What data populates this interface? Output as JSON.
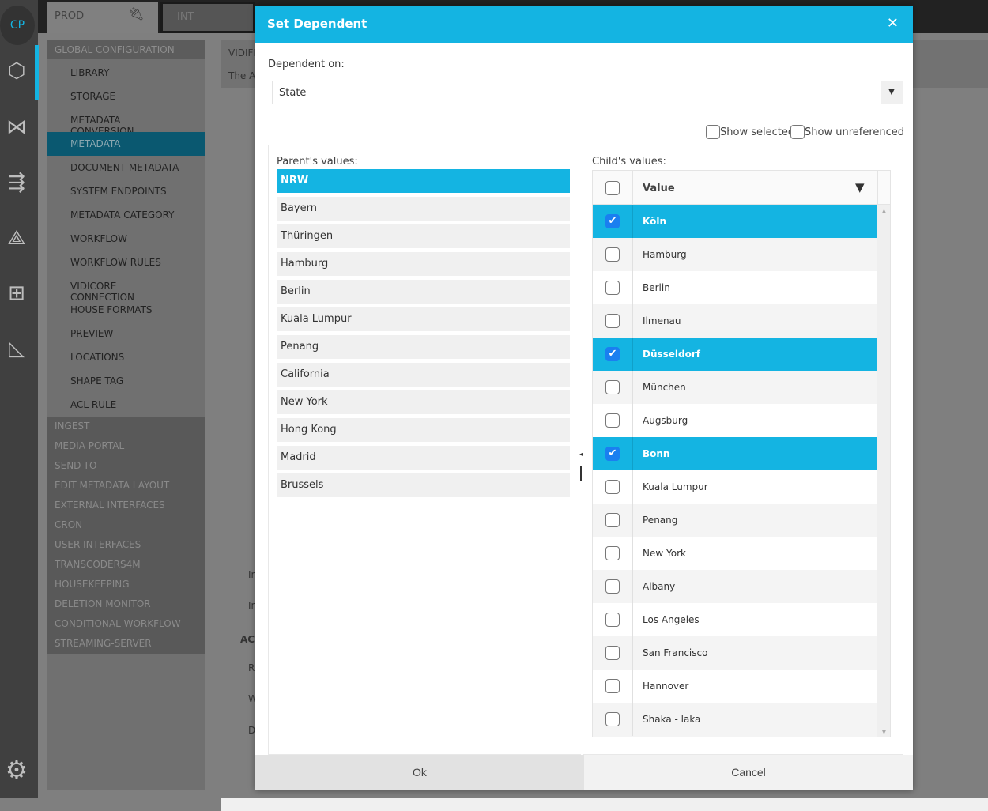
{
  "app": {
    "logo": "CP",
    "env_tabs": [
      {
        "label": "PROD",
        "icon": "plug-icon"
      },
      {
        "label": "INT"
      }
    ]
  },
  "sidebar_icons": [
    "cubes-icon",
    "network-icon",
    "flow-icon",
    "workflow-icon",
    "connector-icon",
    "triangle-tool-icon",
    "gears-icon"
  ],
  "nav": {
    "group": "GLOBAL CONFIGURATION",
    "items": [
      "LIBRARY",
      "STORAGE",
      "METADATA CONVERSION",
      "METADATA",
      "DOCUMENT METADATA",
      "SYSTEM ENDPOINTS",
      "METADATA CATEGORY",
      "WORKFLOW",
      "WORKFLOW RULES",
      "VIDICORE CONNECTION",
      "HOUSE FORMATS",
      "PREVIEW",
      "LOCATIONS",
      "SHAPE TAG",
      "ACL RULE"
    ],
    "selected": "METADATA",
    "sections": [
      "INGEST",
      "MEDIA PORTAL",
      "SEND-TO",
      "EDIT METADATA LAYOUT",
      "EXTERNAL INTERFACES",
      "CRON",
      "USER INTERFACES",
      "TRANSCODERS4M",
      "HOUSEKEEPING",
      "DELETION MONITOR",
      "CONDITIONAL WORKFLOW",
      "STREAMING-SERVER"
    ]
  },
  "background": {
    "title_fragment": "VIDIFL",
    "text_fragment": "The A",
    "frags": [
      "In",
      "In",
      "ACC",
      "Re",
      "W",
      "D"
    ]
  },
  "dialog": {
    "title": "Set Dependent",
    "dependent_on_label": "Dependent on:",
    "dependent_on_value": "State",
    "show_selected": {
      "label": "Show selected",
      "checked": false
    },
    "show_unreferenced": {
      "label": "Show unreferenced",
      "checked": false
    },
    "parent_label": "Parent's values:",
    "parents": [
      "NRW",
      "Bayern",
      "Thüringen",
      "Hamburg",
      "Berlin",
      "Kuala Lumpur",
      "Penang",
      "California",
      "New York",
      "Hong Kong",
      "Madrid",
      "Brussels"
    ],
    "parent_selected": "NRW",
    "child_label": "Child's values:",
    "child_header": "Value",
    "children": [
      {
        "value": "Köln",
        "checked": true
      },
      {
        "value": "Hamburg",
        "checked": false
      },
      {
        "value": "Berlin",
        "checked": false
      },
      {
        "value": "Ilmenau",
        "checked": false
      },
      {
        "value": "Düsseldorf",
        "checked": true
      },
      {
        "value": "München",
        "checked": false
      },
      {
        "value": "Augsburg",
        "checked": false
      },
      {
        "value": "Bonn",
        "checked": true
      },
      {
        "value": "Kuala Lumpur",
        "checked": false
      },
      {
        "value": "Penang",
        "checked": false
      },
      {
        "value": "New York",
        "checked": false
      },
      {
        "value": "Albany",
        "checked": false
      },
      {
        "value": "Los Angeles",
        "checked": false
      },
      {
        "value": "San Francisco",
        "checked": false
      },
      {
        "value": "Hannover",
        "checked": false
      },
      {
        "value": "Shaka - laka",
        "checked": false
      }
    ],
    "ok_label": "Ok",
    "cancel_label": "Cancel"
  },
  "colors": {
    "accent": "#14b4e2",
    "nav_selected": "#0a5870",
    "checkbox_checked": "#1a7ff0"
  }
}
